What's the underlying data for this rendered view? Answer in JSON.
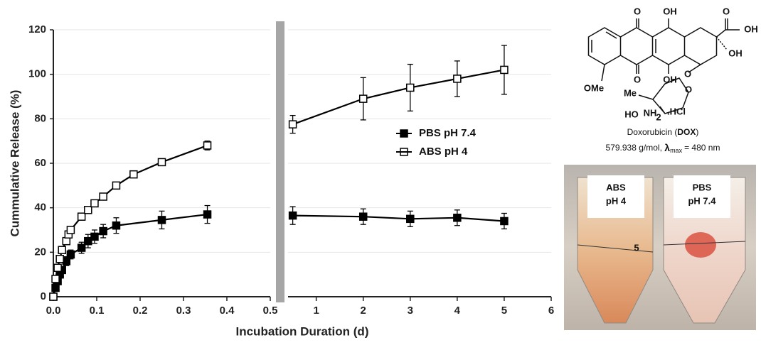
{
  "chart_data": [
    {
      "type": "line",
      "ylabel": "Cummulative Release (%)",
      "xlabel": "Incubation Duration (d)",
      "xlim": [
        0,
        0.5
      ],
      "xticks": [
        {
          "value": 0,
          "label": "0.0"
        },
        0.1,
        0.2,
        0.3,
        0.4,
        0.5
      ],
      "ylim": [
        0,
        120
      ],
      "yticks": [
        0,
        20,
        40,
        60,
        80,
        100,
        120
      ],
      "grid": true,
      "series": [
        {
          "name": "PBS pH 7.4",
          "color": "#000000",
          "marker": "filled",
          "x": [
            0,
            0.005,
            0.01,
            0.015,
            0.02,
            0.03,
            0.04,
            0.065,
            0.08,
            0.095,
            0.115,
            0.145,
            0.25,
            0.355
          ],
          "values": [
            0,
            4,
            7,
            10,
            12,
            16,
            19,
            22,
            25,
            27,
            29.5,
            32,
            34.5,
            37
          ],
          "errors": [
            0,
            1,
            1,
            1.5,
            1.5,
            2,
            2,
            2.5,
            3,
            3,
            3,
            3.5,
            4,
            4
          ]
        },
        {
          "name": "ABS pH 4",
          "color": "#000000",
          "marker": "open",
          "x": [
            0,
            0.005,
            0.01,
            0.015,
            0.02,
            0.03,
            0.035,
            0.04,
            0.065,
            0.08,
            0.095,
            0.115,
            0.145,
            0.185,
            0.25,
            0.355
          ],
          "values": [
            0,
            8,
            13,
            17,
            21,
            25,
            28,
            30,
            36,
            39,
            42,
            45,
            50,
            55,
            60.5,
            68
          ],
          "errors": [
            0,
            0.5,
            0.5,
            0.5,
            0.5,
            1,
            1,
            1,
            1,
            1,
            1,
            1,
            1,
            1,
            1.5,
            2
          ]
        }
      ]
    },
    {
      "type": "line",
      "xlim": [
        0.4,
        6
      ],
      "xticks": [
        1,
        2,
        3,
        4,
        5,
        6
      ],
      "ylim": [
        0,
        120
      ],
      "grid": true,
      "legend": "right",
      "series": [
        {
          "name": "PBS pH 7.4",
          "color": "#000000",
          "marker": "filled",
          "x": [
            0.5,
            2,
            3,
            4,
            5
          ],
          "values": [
            36.5,
            36,
            35,
            35.5,
            34
          ],
          "errors": [
            4,
            3.5,
            3.5,
            3.5,
            3.5
          ]
        },
        {
          "name": "ABS pH 4",
          "color": "#000000",
          "marker": "open",
          "x": [
            0.5,
            2,
            3,
            4,
            5
          ],
          "values": [
            77.5,
            89,
            94,
            98,
            102
          ],
          "errors": [
            4,
            9.5,
            10.5,
            8,
            11
          ]
        }
      ]
    }
  ],
  "structure": {
    "atoms": [
      "O",
      "OH",
      "O",
      "OH",
      "OMe",
      "O",
      "OH",
      "OH",
      "O",
      "Me",
      "O",
      "HO",
      "NH",
      "2",
      ".HCl"
    ],
    "caption_name": "Doxorubicin (",
    "caption_abbr": "DOX",
    "caption_close": ")",
    "mass": "579.938 g/mol,",
    "lambda": "λ",
    "lambda_sub": "max",
    "lambda_value": "= 480 nm"
  },
  "photo": {
    "left_label": [
      "ABS",
      "pH 4"
    ],
    "right_label": [
      "PBS",
      "pH 7.4"
    ],
    "tube_mark": "5"
  }
}
